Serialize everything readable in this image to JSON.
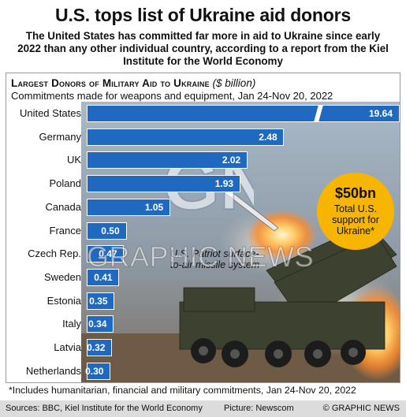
{
  "title": "U.S. tops list of Ukraine aid donors",
  "subtitle": "The United States has committed far more in aid to Ukraine since early 2022 than any other individual country, according to a report from the Kiel Institute for the World Economy",
  "chart_data": {
    "type": "bar",
    "orientation": "horizontal",
    "title": "Largest Donors of Military Aid to Ukraine",
    "unit": "($ billion)",
    "subtitle": "Commitments made for weapons and equipment, Jan 24-Nov 20, 2022",
    "categories": [
      "United States",
      "Germany",
      "UK",
      "Poland",
      "Canada",
      "France",
      "Czech Rep.",
      "Sweden",
      "Estonia",
      "Italy",
      "Latvia",
      "Netherlands"
    ],
    "values": [
      19.64,
      2.48,
      2.02,
      1.93,
      1.05,
      0.5,
      0.47,
      0.41,
      0.35,
      0.34,
      0.32,
      0.3
    ],
    "value_labels": [
      "19.64",
      "2.48",
      "2.02",
      "1.93",
      "1.05",
      "0.50",
      "0.47",
      "0.41",
      "0.35",
      "0.34",
      "0.32",
      "0.30"
    ],
    "axis_break_on_first_bar": true,
    "grid": false,
    "bar_color": "#1f6ac0"
  },
  "callout": {
    "amount": "$50bn",
    "text": "Total U.S. support for Ukraine*",
    "color": "#f7b500"
  },
  "photo_caption": "U.S. Patriot surface-to-air missile system",
  "watermark": "GRAPHIC NEWS",
  "logo_letters": "GN",
  "footnote": "*Includes humanitarian, financial and military commitments, Jan 24-Nov 20, 2022",
  "footer": {
    "sources": "Sources: BBC, Kiel Institute for the World Economy",
    "credit": "Picture: Newscom",
    "brand": "© GRAPHIC NEWS"
  }
}
